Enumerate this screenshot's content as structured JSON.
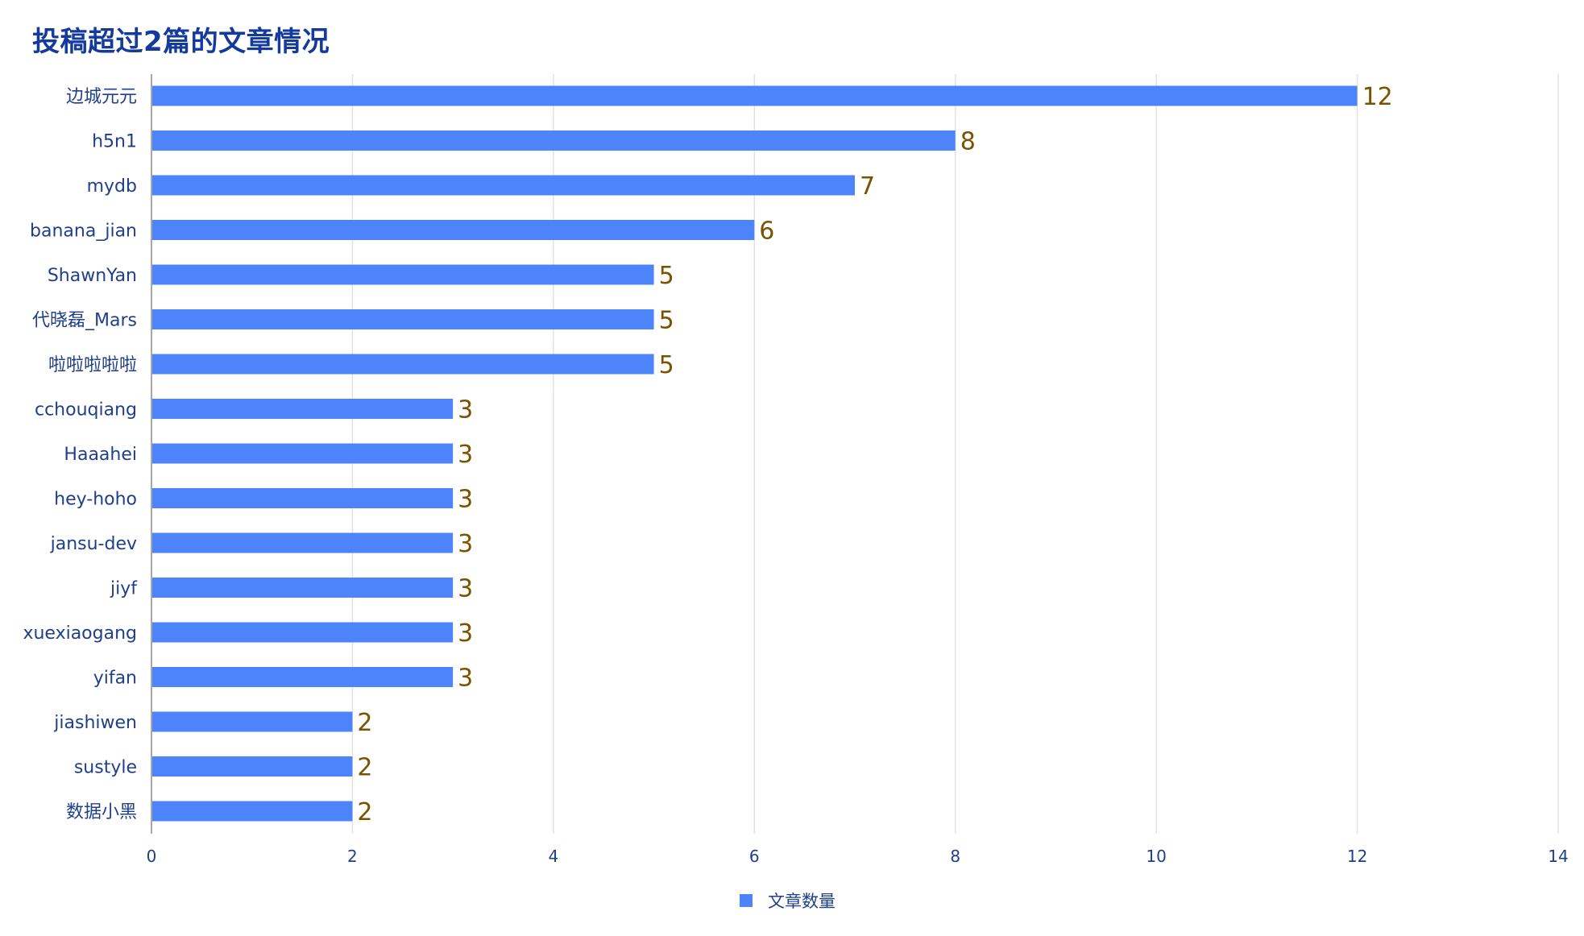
{
  "chart_data": {
    "type": "bar",
    "orientation": "horizontal",
    "title": "投稿超过2篇的文章情况",
    "categories": [
      "边城元元",
      "h5n1",
      "mydb",
      "banana_jian",
      "ShawnYan",
      "代晓磊_Mars",
      "啦啦啦啦啦",
      "cchouqiang",
      "Haaahei",
      "hey-hoho",
      "jansu-dev",
      "jiyf",
      "xuexiaogang",
      "yifan",
      "jiashiwen",
      "sustyle",
      "数据小黑"
    ],
    "series": [
      {
        "name": "文章数量",
        "values": [
          12,
          8,
          7,
          6,
          5,
          5,
          5,
          3,
          3,
          3,
          3,
          3,
          3,
          3,
          2,
          2,
          2
        ],
        "color": "#4d84fb"
      }
    ],
    "xlim": [
      0,
      14
    ],
    "x_ticks": [
      0,
      2,
      4,
      6,
      8,
      10,
      12,
      14
    ],
    "grid": true,
    "data_labels": true,
    "legend_position": "bottom-center",
    "colors": {
      "title": "#143a9b",
      "axis_text": "#1f3f8c",
      "value_label": "#7a5200",
      "grid": "#e2e2e2"
    }
  }
}
